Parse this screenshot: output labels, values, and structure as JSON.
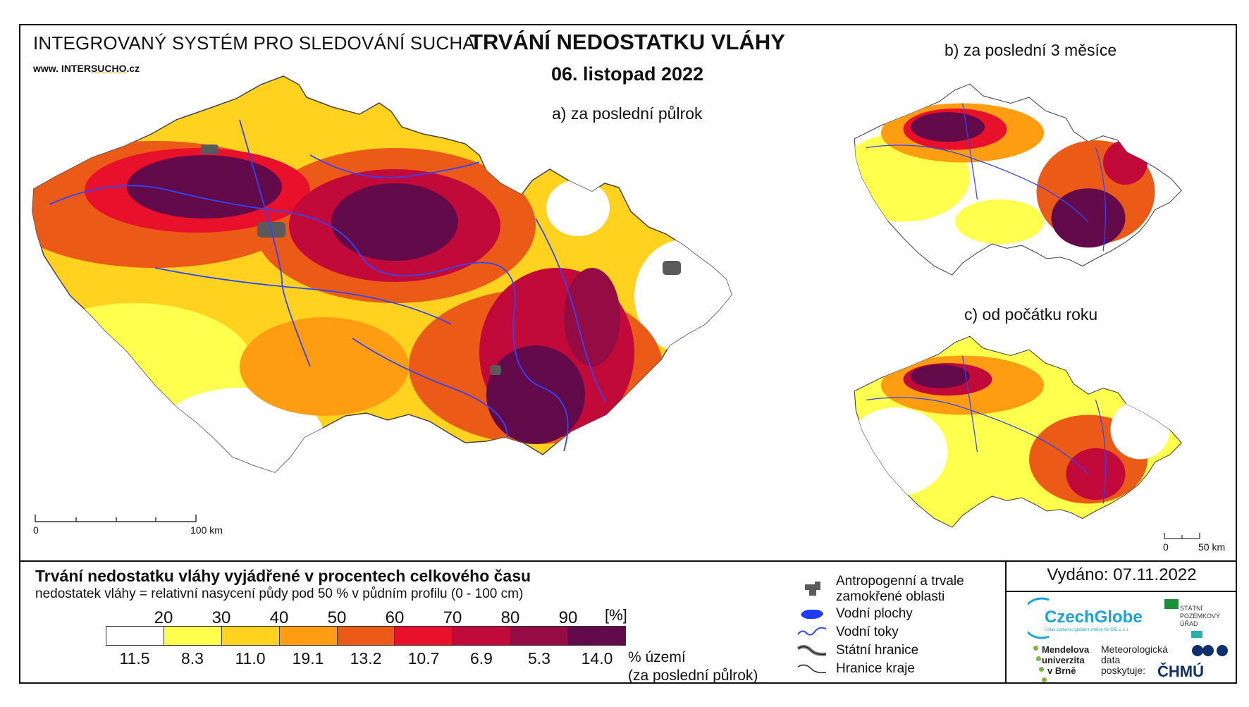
{
  "header": {
    "system_title": "INTEGROVANÝ SYSTÉM PRO SLEDOVÁNÍ SUCHA",
    "website_prefix": "www. INTER",
    "website_mid": "SUCHO",
    "website_suffix": ".cz",
    "main_title": "TRVÁNÍ NEDOSTATKU VLÁHY",
    "date": "06. listopad 2022"
  },
  "maps": {
    "a_label": "a) za poslední půlrok",
    "b_label": "b) za poslední 3 měsíce",
    "c_label": "c) od počátku roku",
    "main_scale": {
      "start": "0",
      "end": "100 km"
    },
    "small_scale": {
      "start": "0",
      "end": "50 km"
    }
  },
  "legend": {
    "title": "Trvání nedostatku vláhy vyjádřené v procentech celkového času",
    "subtitle": "nedostatek vláhy = relativní nasycení půdy pod 50 % v půdním profilu (0 - 100 cm)",
    "thresholds": [
      "20",
      "30",
      "40",
      "50",
      "60",
      "70",
      "80",
      "90"
    ],
    "unit": "[%]",
    "colors": [
      "#ffffff",
      "#ffff4d",
      "#ffd21f",
      "#ff9d12",
      "#eb5a16",
      "#e8102a",
      "#c20a3a",
      "#950c44",
      "#620a4a"
    ],
    "area_percent": [
      "11.5",
      "8.3",
      "11.0",
      "19.1",
      "13.2",
      "10.7",
      "6.9",
      "5.3",
      "14.0"
    ],
    "area_note_line1": "% území",
    "area_note_line2": "(za poslední půlrok)"
  },
  "symbols": {
    "anthropogenic_line1": "Antropogenní a trvale",
    "anthropogenic_line2": "zamokřené oblasti",
    "water_bodies": "Vodní plochy",
    "watercourses": "Vodní toky",
    "state_border": "Státní hranice",
    "region_border": "Hranice kraje",
    "anthropogenic_color": "#5a5a5a",
    "water_color": "#1e3cff"
  },
  "credits": {
    "issued": "Vydáno: 07.11.2022",
    "czechglobe": "CzechGlobe",
    "czechglobe_sub": "Ústav výzkumu globální změny AV ČR, v. v. i.",
    "spu_line1": "STÁTNÍ",
    "spu_line2": "POZEMKOVÝ",
    "spu_line3": "ÚŘAD",
    "mendel_line1": "Mendelova",
    "mendel_line2": "univerzita",
    "mendel_line3": "v Brně",
    "data_line1": "Meteorologická",
    "data_line2": "data",
    "data_line3": "poskytuje:",
    "chmu": "ČHMÚ"
  }
}
